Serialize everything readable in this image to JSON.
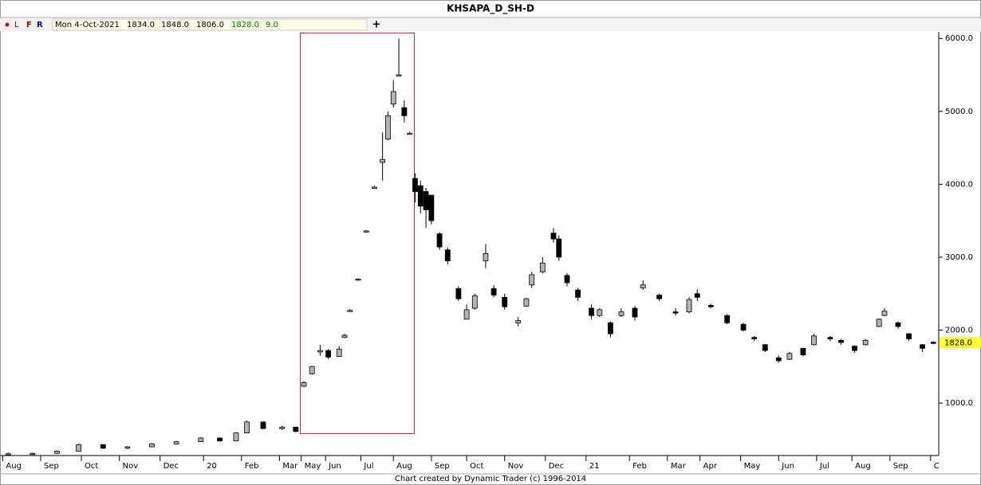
{
  "chart_data": {
    "type": "candlestick",
    "title": "KHSAPA_D_SH-D",
    "toolbar": [
      "L",
      "F",
      "R"
    ],
    "info_bar": [
      "Mon 4-Oct-2021",
      "1834.0",
      "1848.0",
      "1806.0",
      "1828.0",
      "9.0"
    ],
    "footer": "Chart created by Dynamic Trader  (c) 1996-2014",
    "x": [
      3,
      12,
      21,
      29,
      38,
      47,
      56,
      65,
      74,
      81,
      87,
      91,
      97,
      104,
      109,
      112,
      115,
      118,
      121,
      125,
      127,
      129,
      132,
      135,
      138,
      141,
      143,
      145,
      147,
      149,
      151,
      153,
      155,
      157,
      159,
      162,
      165,
      169,
      172,
      175,
      179,
      182,
      186,
      191,
      194,
      196,
      200,
      204,
      206,
      209,
      213,
      218,
      221,
      225,
      229,
      234,
      237,
      243,
      249,
      254,
      257,
      262,
      268,
      274,
      278,
      282,
      287,
      291,
      296,
      300,
      306,
      310,
      315,
      319,
      324,
      326,
      331,
      335,
      340,
      344
    ],
    "open": [
      300,
      305,
      310,
      340,
      430,
      380,
      400,
      440,
      470,
      520,
      480,
      590,
      740,
      650,
      670,
      1230,
      1400,
      1700,
      1720,
      1640,
      1900,
      2260,
      2690,
      3350,
      3950,
      4300,
      4620,
      5100,
      5500,
      5050,
      4700,
      4080,
      3980,
      3900,
      3850,
      3320,
      3100,
      2570,
      2150,
      2300,
      2950,
      2570,
      2450,
      2100,
      2330,
      2620,
      2800,
      3330,
      3250,
      2750,
      2550,
      2300,
      2200,
      2100,
      2200,
      2300,
      2580,
      2480,
      2250,
      2250,
      2500,
      2340,
      2200,
      2080,
      1900,
      1800,
      1620,
      1600,
      1750,
      1800,
      1900,
      1860,
      1780,
      1800,
      2050,
      2200,
      2100,
      1950,
      1800,
      1834
    ],
    "high": [
      320,
      320,
      350,
      440,
      435,
      410,
      450,
      480,
      530,
      530,
      600,
      760,
      745,
      690,
      675,
      1300,
      1510,
      1800,
      1740,
      1780,
      1950,
      2290,
      2710,
      3370,
      3980,
      4710,
      5000,
      5430,
      6000,
      5150,
      4720,
      4150,
      4050,
      3950,
      3850,
      3340,
      3130,
      2600,
      2350,
      2500,
      3180,
      2620,
      2500,
      2180,
      2440,
      2800,
      3000,
      3400,
      3300,
      2780,
      2580,
      2350,
      2300,
      2120,
      2300,
      2330,
      2680,
      2500,
      2300,
      2450,
      2560,
      2360,
      2220,
      2100,
      1920,
      1810,
      1650,
      1700,
      1760,
      1950,
      1920,
      1880,
      1790,
      1880,
      2160,
      2300,
      2120,
      1960,
      1810,
      1848
    ],
    "low": [
      290,
      295,
      305,
      335,
      370,
      370,
      395,
      430,
      465,
      470,
      475,
      585,
      640,
      630,
      600,
      1220,
      1390,
      1650,
      1600,
      1630,
      1890,
      2250,
      2680,
      3340,
      3940,
      4050,
      4600,
      5050,
      5480,
      4850,
      4680,
      3750,
      3600,
      3400,
      3450,
      3100,
      2900,
      2400,
      2150,
      2280,
      2850,
      2450,
      2280,
      2050,
      2320,
      2580,
      2780,
      3200,
      2950,
      2600,
      2400,
      2150,
      2180,
      1900,
      2180,
      2130,
      2550,
      2400,
      2200,
      2230,
      2400,
      2300,
      2080,
      1980,
      1850,
      1700,
      1550,
      1590,
      1640,
      1790,
      1850,
      1800,
      1690,
      1790,
      2040,
      2190,
      2020,
      1850,
      1700,
      1806
    ],
    "close": [
      305,
      310,
      340,
      430,
      380,
      400,
      440,
      470,
      520,
      480,
      590,
      740,
      650,
      670,
      610,
      1280,
      1500,
      1720,
      1630,
      1740,
      1930,
      2270,
      2700,
      3360,
      3960,
      4340,
      4940,
      5270,
      5500,
      4940,
      4700,
      3900,
      3700,
      3650,
      3500,
      3140,
      2950,
      2430,
      2280,
      2470,
      3050,
      2480,
      2320,
      2130,
      2430,
      2760,
      2920,
      3250,
      3000,
      2650,
      2450,
      2200,
      2280,
      1950,
      2250,
      2180,
      2620,
      2430,
      2240,
      2420,
      2450,
      2320,
      2100,
      2000,
      1880,
      1720,
      1580,
      1680,
      1660,
      1920,
      1880,
      1830,
      1720,
      1860,
      2150,
      2260,
      2050,
      1880,
      1750,
      1828
    ],
    "up_color": "#b4b4b4",
    "down_color": "#000000",
    "xlim": [
      0,
      346
    ],
    "ylim": [
      280,
      6090
    ],
    "xticks": [
      {
        "value": 1,
        "label": "Aug"
      },
      {
        "value": 15,
        "label": "Sep"
      },
      {
        "value": 30,
        "label": "Oct"
      },
      {
        "value": 44,
        "label": "Nov"
      },
      {
        "value": 59,
        "label": "Dec"
      },
      {
        "value": 75,
        "label": "20"
      },
      {
        "value": 89,
        "label": "Feb"
      },
      {
        "value": 103,
        "label": "Mar"
      },
      {
        "value": 111,
        "label": "May"
      },
      {
        "value": 120,
        "label": "Jun"
      },
      {
        "value": 133,
        "label": "Jul"
      },
      {
        "value": 145,
        "label": "Aug"
      },
      {
        "value": 159,
        "label": "Sep"
      },
      {
        "value": 172,
        "label": "Oct"
      },
      {
        "value": 186,
        "label": "Nov"
      },
      {
        "value": 201,
        "label": "Dec"
      },
      {
        "value": 216,
        "label": "21"
      },
      {
        "value": 232,
        "label": "Feb"
      },
      {
        "value": 246,
        "label": "Mar"
      },
      {
        "value": 258,
        "label": "Apr"
      },
      {
        "value": 273,
        "label": "May"
      },
      {
        "value": 287,
        "label": "Jun"
      },
      {
        "value": 301,
        "label": "Jul"
      },
      {
        "value": 314,
        "label": "Aug"
      },
      {
        "value": 328,
        "label": "Sep"
      },
      {
        "value": 343,
        "label": "C"
      }
    ],
    "yticks": [
      {
        "value": 1000,
        "label": "1000.0"
      },
      {
        "value": 2000,
        "label": "2000.0"
      },
      {
        "value": 3000,
        "label": "3000.0"
      },
      {
        "value": 4000,
        "label": "4000.0"
      },
      {
        "value": 5000,
        "label": "5000.0"
      },
      {
        "value": 6000,
        "label": "6000.0"
      }
    ],
    "last_price": {
      "value": 1828,
      "label": "1828.0"
    },
    "last_price_color": "#ffff33"
  }
}
